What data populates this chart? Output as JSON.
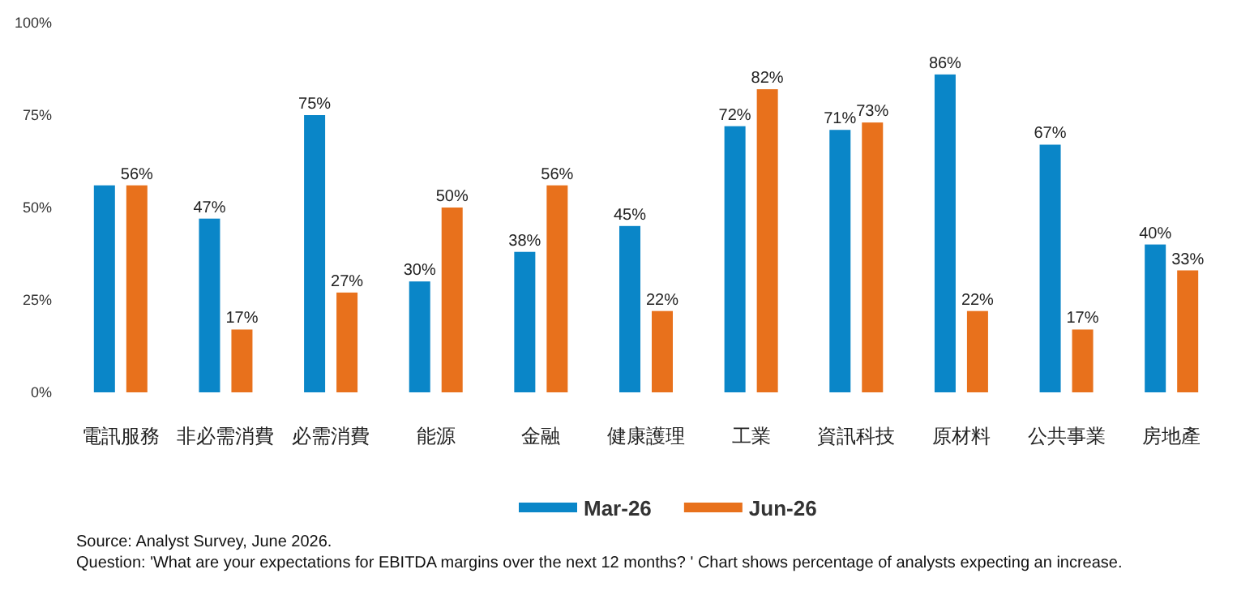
{
  "chart_data": {
    "type": "bar",
    "categories": [
      "電訊服務",
      "非必需消費",
      "必需消費",
      "能源",
      "金融",
      "健康護理",
      "工業",
      "資訊科技",
      "原材料",
      "公共事業",
      "房地產"
    ],
    "series": [
      {
        "name": "Mar-26",
        "color": "#0a86c8",
        "values": [
          56,
          47,
          75,
          30,
          38,
          45,
          72,
          71,
          86,
          67,
          40
        ],
        "value_labels": [
          null,
          "47%",
          "75%",
          "30%",
          "38%",
          "45%",
          "72%",
          "71%",
          "86%",
          "67%",
          "40%"
        ]
      },
      {
        "name": "Jun-26",
        "color": "#e8711c",
        "values": [
          56,
          17,
          27,
          50,
          56,
          22,
          82,
          73,
          22,
          17,
          33
        ],
        "value_labels": [
          "56%",
          "17%",
          "27%",
          "50%",
          "56%",
          "22%",
          "82%",
          "73%",
          "22%",
          "17%",
          "33%"
        ]
      }
    ],
    "ylim": [
      0,
      100
    ],
    "yticks": [
      {
        "value": 0,
        "label": "0%"
      },
      {
        "value": 25,
        "label": "25%"
      },
      {
        "value": 50,
        "label": "50%"
      },
      {
        "value": 75,
        "label": "75%"
      },
      {
        "value": 100,
        "label": "100%"
      }
    ],
    "legend": "bottom",
    "annotations": [
      "Source: Analyst Survey, June 2026.",
      "Question: 'What are your expectations for EBITDA margins over the next 12 months? ' Chart shows percentage of analysts expecting an increase."
    ]
  }
}
